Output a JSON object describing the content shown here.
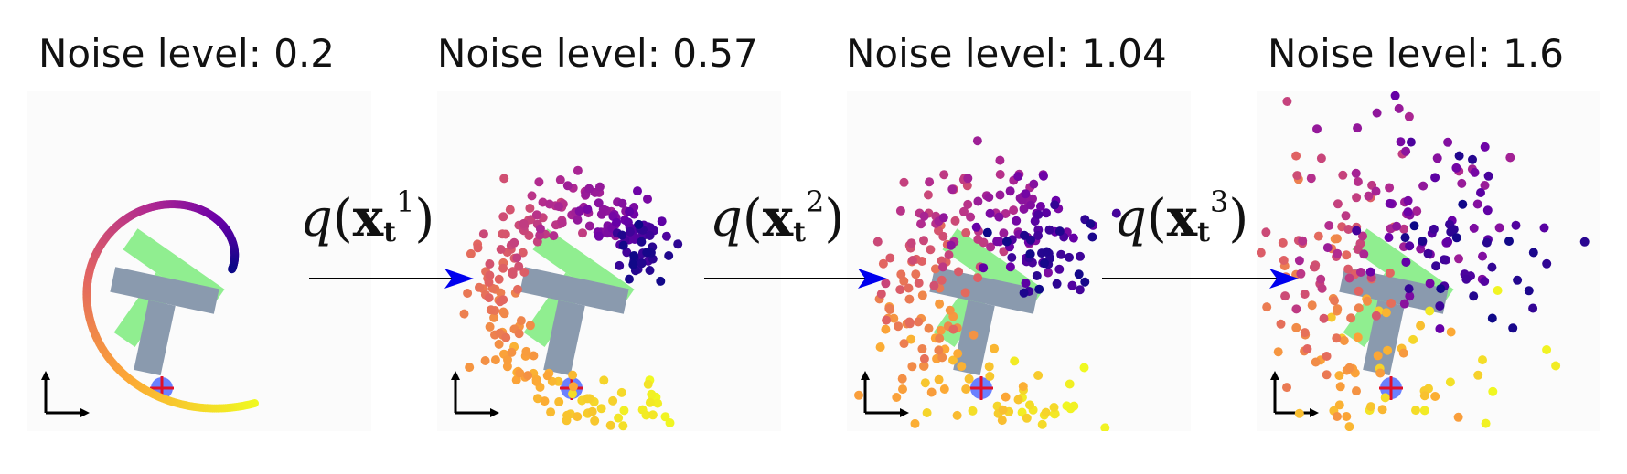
{
  "panels": [
    {
      "title_prefix": "Noise level: ",
      "noise_level": "0.2",
      "spread": 0.2
    },
    {
      "title_prefix": "Noise level: ",
      "noise_level": "0.57",
      "spread": 0.57
    },
    {
      "title_prefix": "Noise level: ",
      "noise_level": "1.04",
      "spread": 1.04
    },
    {
      "title_prefix": "Noise level: ",
      "noise_level": "1.6",
      "spread": 1.6
    }
  ],
  "transitions": [
    {
      "func": "q",
      "var": "x",
      "sub": "t",
      "sup": "1"
    },
    {
      "func": "q",
      "var": "x",
      "sub": "t",
      "sup": "2"
    },
    {
      "func": "q",
      "var": "x",
      "sub": "t",
      "sup": "3"
    }
  ],
  "colors": {
    "panel_bg": "#fbfbfb",
    "t_goal": "#90ee90",
    "t_block": "#8a9aae",
    "arrow": "#0000ee",
    "axes": "#000000",
    "colormap": "plasma"
  }
}
